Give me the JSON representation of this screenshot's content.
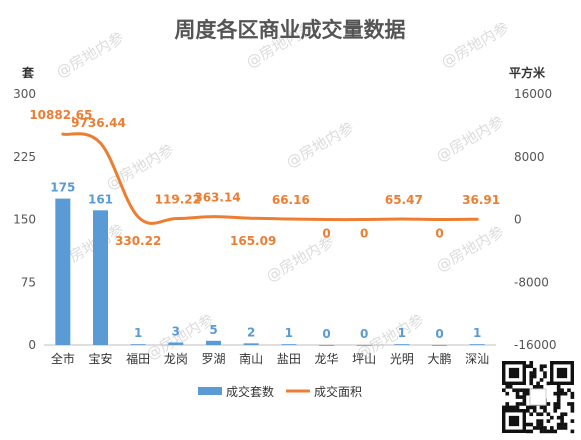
{
  "chart_data": {
    "type": "bar+line",
    "title": "周度各区商业成交量数据",
    "left_unit": "套",
    "right_unit": "平方米",
    "categories": [
      "全市",
      "宝安",
      "福田",
      "龙岗",
      "罗湖",
      "南山",
      "盐田",
      "龙华",
      "坪山",
      "光明",
      "大鹏",
      "深汕"
    ],
    "series": [
      {
        "name": "成交套数",
        "type": "bar",
        "axis": "left",
        "color": "#5b9bd5",
        "values": [
          175,
          161,
          1,
          3,
          5,
          2,
          1,
          0,
          0,
          1,
          0,
          1
        ],
        "labels": [
          "175",
          "161",
          "1",
          "3",
          "5",
          "2",
          "1",
          "0",
          "0",
          "1",
          "0",
          "1"
        ]
      },
      {
        "name": "成交面积",
        "type": "line",
        "axis": "right",
        "color": "#ed7d31",
        "values": [
          10882.65,
          9736.44,
          330.22,
          119.22,
          363.14,
          165.09,
          66.16,
          0,
          0,
          65.47,
          0,
          36.91
        ],
        "labels": [
          "10882.65",
          "9736.44",
          "330.22",
          "119.22",
          "363.14",
          "165.09",
          "66.16",
          "0",
          "0",
          "65.47",
          "0",
          "36.91"
        ]
      }
    ],
    "y_left": {
      "min": 0,
      "max": 300,
      "ticks": [
        "0",
        "75",
        "150",
        "225",
        "300"
      ]
    },
    "y_right": {
      "min": -16000,
      "max": 16000,
      "ticks": [
        "-16000",
        "-8000",
        "0",
        "8000",
        "16000"
      ]
    },
    "grid": false,
    "legend_position": "bottom"
  },
  "watermark": "@房地内参",
  "qr_icon": "qr-code-icon"
}
